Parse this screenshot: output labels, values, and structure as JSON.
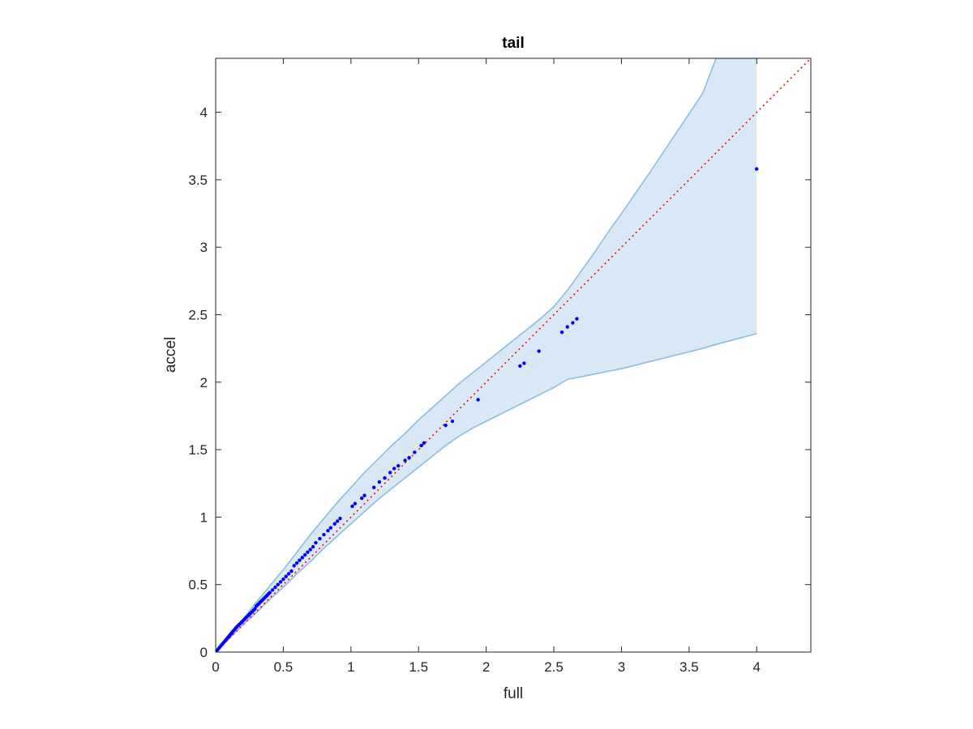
{
  "chart_data": {
    "type": "scatter",
    "title": "tail",
    "xlabel": "full",
    "ylabel": "accel",
    "xlim": [
      0,
      4.4
    ],
    "ylim": [
      0,
      4.4
    ],
    "xticks": [
      "0",
      "0.5",
      "1",
      "1.5",
      "2",
      "2.5",
      "3",
      "3.5",
      "4"
    ],
    "yticks": [
      "0",
      "0.5",
      "1",
      "1.5",
      "2",
      "2.5",
      "3",
      "3.5",
      "4"
    ],
    "grid": false,
    "colors": {
      "points": "#0000ff",
      "reference": "#ff0000",
      "band_fill": "#d9e8f5",
      "band_edge": "#8bbde0",
      "axes": "#262626"
    },
    "reference_line": {
      "x": [
        0,
        4.4
      ],
      "y": [
        0,
        4.4
      ],
      "style": "dotted"
    },
    "band": {
      "x": [
        0,
        0.05,
        0.1,
        0.2,
        0.3,
        0.4,
        0.5,
        0.6,
        0.7,
        0.8,
        0.9,
        1.0,
        1.1,
        1.2,
        1.3,
        1.4,
        1.5,
        1.6,
        1.7,
        1.8,
        1.9,
        2.0,
        2.1,
        2.2,
        2.3,
        2.4,
        2.5,
        2.6,
        2.7,
        2.8,
        2.9,
        3.0,
        3.2,
        3.4,
        3.6,
        3.7,
        4.0
      ],
      "upper": [
        0,
        0.06,
        0.12,
        0.24,
        0.37,
        0.49,
        0.61,
        0.74,
        0.87,
        0.99,
        1.11,
        1.22,
        1.33,
        1.43,
        1.53,
        1.62,
        1.72,
        1.81,
        1.9,
        1.99,
        2.07,
        2.15,
        2.23,
        2.31,
        2.39,
        2.47,
        2.56,
        2.68,
        2.82,
        2.96,
        3.11,
        3.25,
        3.54,
        3.84,
        4.14,
        4.4,
        4.4
      ],
      "lower": [
        0,
        0.05,
        0.1,
        0.2,
        0.29,
        0.39,
        0.48,
        0.58,
        0.67,
        0.77,
        0.86,
        0.95,
        1.04,
        1.13,
        1.21,
        1.29,
        1.37,
        1.45,
        1.53,
        1.6,
        1.66,
        1.71,
        1.76,
        1.81,
        1.86,
        1.91,
        1.96,
        2.02,
        2.04,
        2.06,
        2.08,
        2.1,
        2.15,
        2.2,
        2.25,
        2.28,
        2.36
      ]
    },
    "points": {
      "x": [
        0.005,
        0.01,
        0.02,
        0.03,
        0.04,
        0.05,
        0.06,
        0.07,
        0.08,
        0.09,
        0.1,
        0.11,
        0.12,
        0.13,
        0.14,
        0.15,
        0.16,
        0.17,
        0.18,
        0.19,
        0.2,
        0.21,
        0.22,
        0.23,
        0.24,
        0.25,
        0.26,
        0.27,
        0.28,
        0.29,
        0.3,
        0.31,
        0.32,
        0.33,
        0.34,
        0.35,
        0.36,
        0.37,
        0.38,
        0.39,
        0.4,
        0.42,
        0.44,
        0.46,
        0.48,
        0.5,
        0.52,
        0.54,
        0.56,
        0.58,
        0.6,
        0.62,
        0.64,
        0.66,
        0.68,
        0.7,
        0.72,
        0.74,
        0.77,
        0.8,
        0.83,
        0.85,
        0.88,
        0.9,
        0.92,
        1.01,
        1.03,
        1.08,
        1.1,
        1.17,
        1.21,
        1.25,
        1.29,
        1.32,
        1.35,
        1.4,
        1.43,
        1.47,
        1.52,
        1.54,
        1.7,
        1.75,
        1.94,
        2.25,
        2.28,
        2.39,
        2.56,
        2.6,
        2.64,
        2.67,
        4.0
      ],
      "y": [
        0.006,
        0.012,
        0.024,
        0.036,
        0.048,
        0.06,
        0.072,
        0.084,
        0.096,
        0.108,
        0.12,
        0.132,
        0.144,
        0.156,
        0.168,
        0.18,
        0.19,
        0.2,
        0.21,
        0.22,
        0.23,
        0.24,
        0.25,
        0.26,
        0.27,
        0.28,
        0.29,
        0.3,
        0.31,
        0.32,
        0.34,
        0.35,
        0.36,
        0.37,
        0.38,
        0.39,
        0.4,
        0.41,
        0.42,
        0.43,
        0.44,
        0.46,
        0.48,
        0.5,
        0.52,
        0.54,
        0.56,
        0.58,
        0.6,
        0.64,
        0.66,
        0.68,
        0.7,
        0.72,
        0.74,
        0.76,
        0.78,
        0.81,
        0.84,
        0.87,
        0.9,
        0.92,
        0.95,
        0.97,
        0.99,
        1.08,
        1.1,
        1.14,
        1.16,
        1.22,
        1.26,
        1.29,
        1.33,
        1.36,
        1.38,
        1.42,
        1.44,
        1.48,
        1.53,
        1.55,
        1.68,
        1.71,
        1.87,
        2.12,
        2.14,
        2.23,
        2.37,
        2.41,
        2.44,
        2.47,
        3.58
      ]
    }
  }
}
